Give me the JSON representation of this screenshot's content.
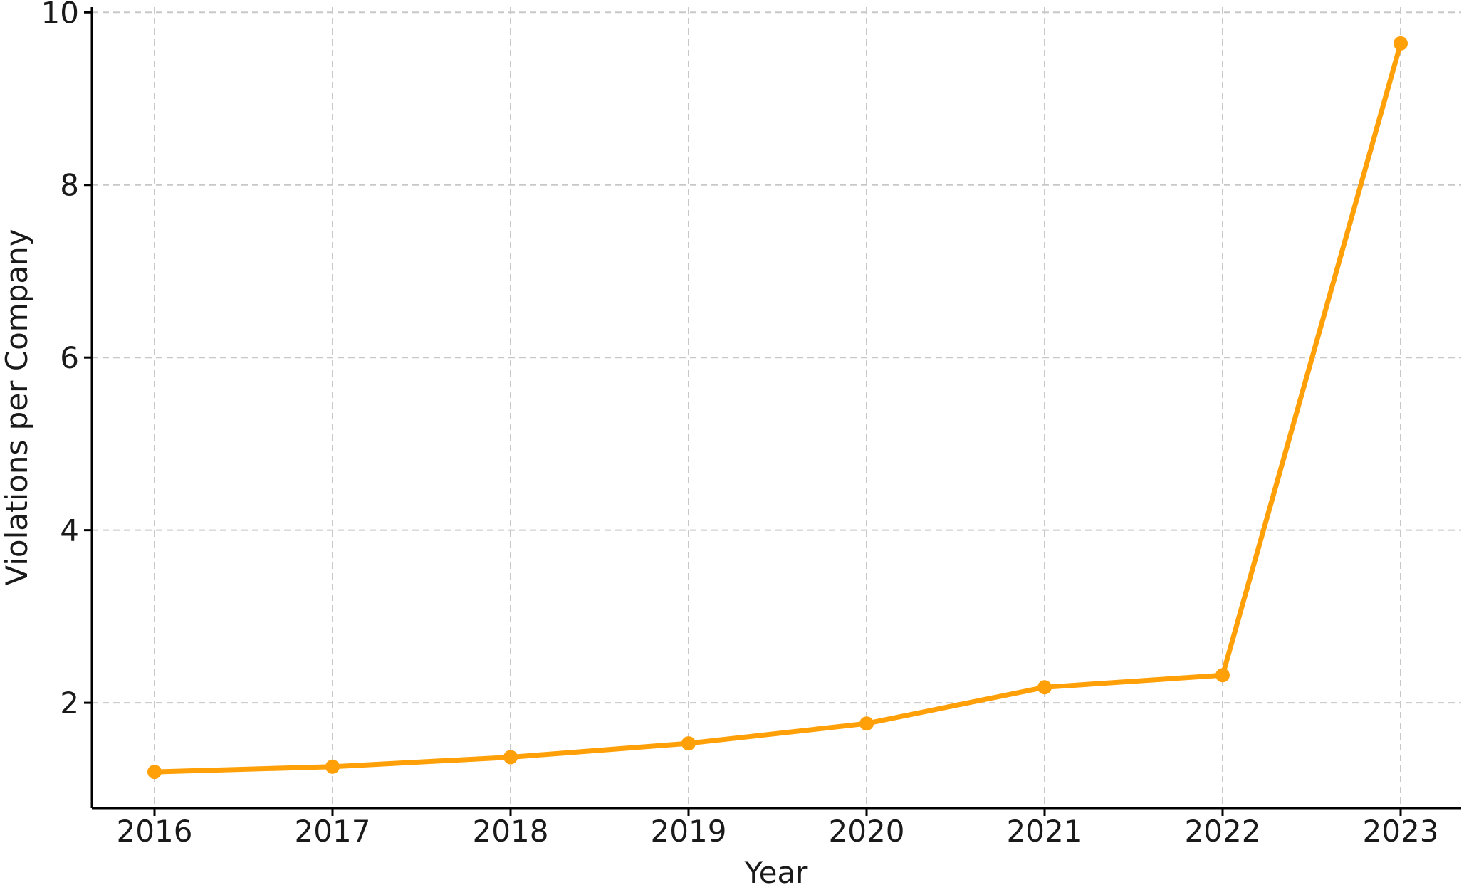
{
  "chart_data": {
    "type": "line",
    "x": [
      "2016",
      "2017",
      "2018",
      "2019",
      "2020",
      "2021",
      "2022",
      "2023"
    ],
    "series": [
      {
        "values": [
          1.2,
          1.26,
          1.37,
          1.53,
          1.76,
          2.18,
          2.32,
          9.64
        ],
        "color": "#ffa008"
      }
    ],
    "title": "",
    "xlabel": "Year",
    "ylabel": "Violations per Company",
    "ylim": [
      0.78,
      10.06
    ],
    "yticks": [
      2,
      4,
      6,
      8,
      10
    ],
    "grid": true,
    "legend": "none"
  }
}
